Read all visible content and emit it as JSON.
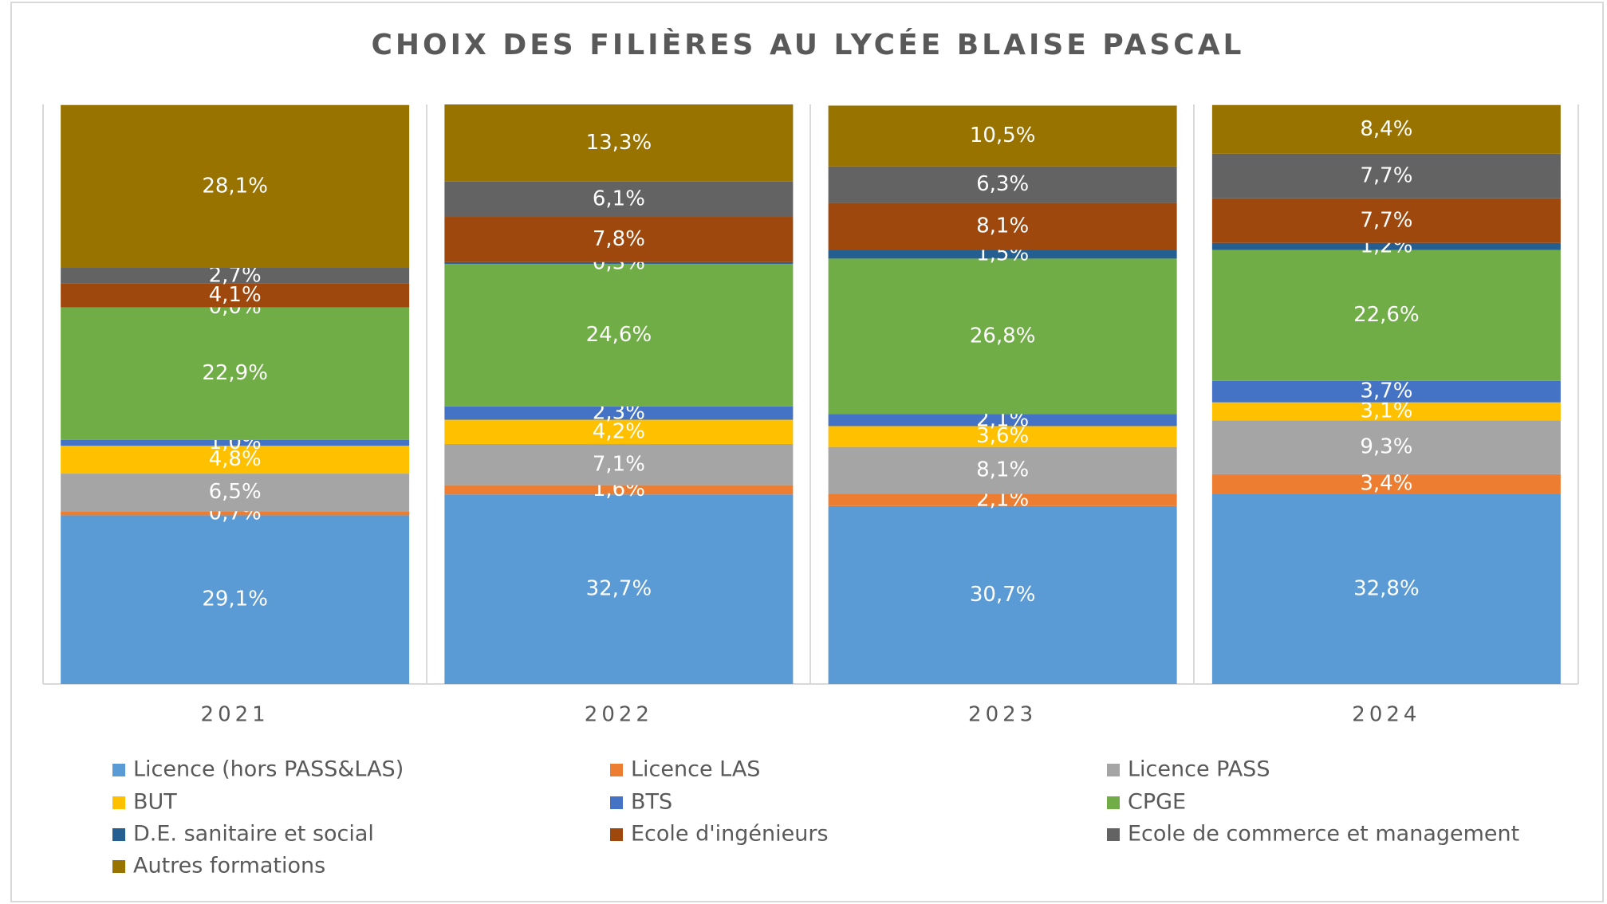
{
  "chart_data": {
    "type": "stacked_bar_100",
    "title": "CHOIX DES FILIÈRES AU LYCÉE BLAISE PASCAL",
    "categories": [
      "2021",
      "2022",
      "2023",
      "2024"
    ],
    "ylim": [
      0,
      100
    ],
    "series": [
      {
        "name": "Licence (hors PASS&LAS)",
        "color": "#5b9bd5",
        "values": [
          29.1,
          32.7,
          30.7,
          32.8
        ],
        "value_labels": [
          "29,1%",
          "32,7%",
          "30,7%",
          "32,8%"
        ]
      },
      {
        "name": "Licence LAS",
        "color": "#ed7d31",
        "values": [
          0.7,
          1.6,
          2.1,
          3.4
        ],
        "value_labels": [
          "0,7%",
          "1,6%",
          "2,1%",
          "3,4%"
        ]
      },
      {
        "name": "Licence PASS",
        "color": "#a5a5a5",
        "values": [
          6.5,
          7.1,
          8.1,
          9.3
        ],
        "value_labels": [
          "6,5%",
          "7,1%",
          "8,1%",
          "9,3%"
        ]
      },
      {
        "name": "BUT",
        "color": "#ffc000",
        "values": [
          4.8,
          4.2,
          3.6,
          3.1
        ],
        "value_labels": [
          "4,8%",
          "4,2%",
          "3,6%",
          "3,1%"
        ]
      },
      {
        "name": "BTS",
        "color": "#4472c4",
        "values": [
          1.0,
          2.3,
          2.1,
          3.7
        ],
        "value_labels": [
          "1,0%",
          "2,3%",
          "2,1%",
          "3,7%"
        ]
      },
      {
        "name": "CPGE",
        "color": "#70ad47",
        "values": [
          22.9,
          24.6,
          26.8,
          22.6
        ],
        "value_labels": [
          "22,9%",
          "24,6%",
          "26,8%",
          "22,6%"
        ]
      },
      {
        "name": "D.E. sanitaire et social",
        "color": "#255e91",
        "values": [
          0.0,
          0.3,
          1.5,
          1.2
        ],
        "value_labels": [
          "0,0%",
          "0,3%",
          "1,5%",
          "1,2%"
        ]
      },
      {
        "name": "Ecole d'ingénieurs",
        "color": "#9e480e",
        "values": [
          4.1,
          7.8,
          8.1,
          7.7
        ],
        "value_labels": [
          "4,1%",
          "7,8%",
          "8,1%",
          "7,7%"
        ]
      },
      {
        "name": "Ecole de commerce et management",
        "color": "#636363",
        "values": [
          2.7,
          6.1,
          6.3,
          7.7
        ],
        "value_labels": [
          "2,7%",
          "6,1%",
          "6,3%",
          "7,7%"
        ]
      },
      {
        "name": "Autres formations",
        "color": "#997300",
        "values": [
          28.1,
          13.3,
          10.5,
          8.4
        ],
        "value_labels": [
          "28,1%",
          "13,3%",
          "10,5%",
          "8,4%"
        ]
      }
    ]
  }
}
